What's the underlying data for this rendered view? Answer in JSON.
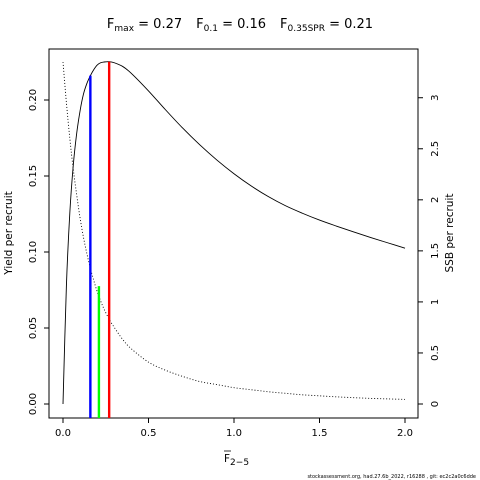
{
  "title": {
    "fmax_main": "F",
    "fmax_sub": "max",
    "fmax_value": " = 0.27",
    "f01_main": "F",
    "f01_sub": "0.1",
    "f01_value": " = 0.16",
    "fspr_main": "F",
    "fspr_sub": "0.35SPR",
    "fspr_value": " = 0.21"
  },
  "xlabel_main": "F",
  "xlabel_sub": "2−5",
  "ylabel_left": "Yield per recruit",
  "ylabel_right": "SSB per recruit",
  "footer": "stockassessment.org, had.27.6b_2022, r16288 , git: ec2c2a0c6dde",
  "chart_data": {
    "type": "line",
    "xlim": [
      0,
      2
    ],
    "ylim_left": [
      0,
      0.225
    ],
    "ylim_right": [
      0,
      3.35
    ],
    "x_ticks": [
      0,
      0.5,
      1,
      1.5,
      2
    ],
    "x_tick_labels": [
      "0.0",
      "0.5",
      "1.0",
      "1.5",
      "2.0"
    ],
    "y_left_ticks": [
      0,
      0.05,
      0.1,
      0.15,
      0.2
    ],
    "y_left_tick_labels": [
      "0.00",
      "0.05",
      "0.10",
      "0.15",
      "0.20"
    ],
    "y_right_ticks": [
      0,
      0.5,
      1,
      1.5,
      2,
      2.5,
      3
    ],
    "y_right_tick_labels": [
      "0",
      "0.5",
      "1",
      "1.5",
      "2",
      "2.5",
      "3"
    ],
    "grid": false,
    "series": [
      {
        "axis": "left",
        "style": "solid",
        "color": "#000000",
        "x": [
          0,
          0.02,
          0.04,
          0.06,
          0.08,
          0.1,
          0.12,
          0.14,
          0.16,
          0.18,
          0.2,
          0.22,
          0.24,
          0.27,
          0.3,
          0.35,
          0.4,
          0.5,
          0.6,
          0.7,
          0.8,
          0.9,
          1.0,
          1.1,
          1.2,
          1.3,
          1.4,
          1.5,
          1.6,
          1.7,
          1.8,
          1.9,
          2.0
        ],
        "y": [
          0,
          0.078,
          0.126,
          0.157,
          0.178,
          0.193,
          0.204,
          0.211,
          0.216,
          0.22,
          0.223,
          0.2245,
          0.225,
          0.2252,
          0.2245,
          0.222,
          0.2175,
          0.206,
          0.1935,
          0.1815,
          0.1705,
          0.1605,
          0.1515,
          0.1435,
          0.1365,
          0.1305,
          0.1255,
          0.121,
          0.117,
          0.1132,
          0.1095,
          0.106,
          0.1025
        ]
      },
      {
        "axis": "right",
        "style": "dotted",
        "color": "#000000",
        "x": [
          0,
          0.02,
          0.04,
          0.06,
          0.08,
          0.1,
          0.12,
          0.14,
          0.16,
          0.18,
          0.2,
          0.22,
          0.24,
          0.27,
          0.3,
          0.35,
          0.4,
          0.5,
          0.6,
          0.7,
          0.8,
          0.9,
          1.0,
          1.1,
          1.2,
          1.3,
          1.4,
          1.5,
          1.6,
          1.7,
          1.8,
          1.9,
          2.0
        ],
        "y": [
          3.35,
          2.95,
          2.6,
          2.3,
          2.05,
          1.82,
          1.63,
          1.47,
          1.33,
          1.21,
          1.1,
          1.01,
          0.93,
          0.83,
          0.75,
          0.63,
          0.54,
          0.41,
          0.33,
          0.27,
          0.22,
          0.19,
          0.16,
          0.14,
          0.12,
          0.105,
          0.09,
          0.08,
          0.07,
          0.062,
          0.055,
          0.05,
          0.045
        ]
      }
    ],
    "reference_lines": [
      {
        "name": "Fmax",
        "x": 0.27,
        "axis": "left",
        "y_top": 0.2252,
        "color": "#ff0000"
      },
      {
        "name": "F0.1",
        "x": 0.16,
        "axis": "left",
        "y_top": 0.216,
        "color": "#0000ff"
      },
      {
        "name": "F0.35SPR",
        "x": 0.21,
        "axis": "right",
        "y_top": 1.155,
        "color": "#00ff00"
      }
    ]
  }
}
